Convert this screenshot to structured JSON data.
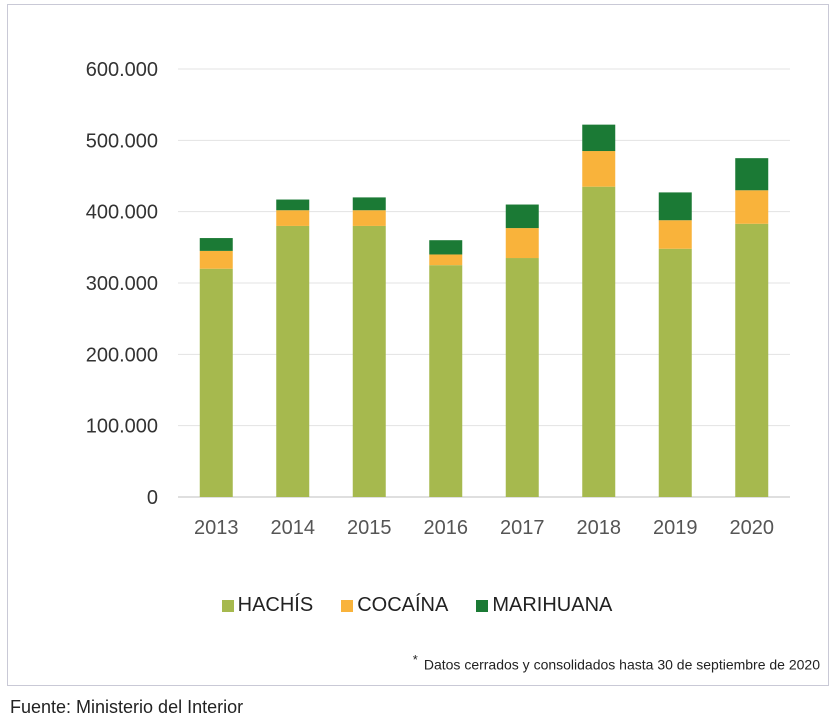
{
  "chart_data": {
    "type": "bar",
    "stacked": true,
    "categories": [
      "2013",
      "2014",
      "2015",
      "2016",
      "2017",
      "2018",
      "2019",
      "2020"
    ],
    "series": [
      {
        "name": "HACHÍS",
        "color": "#a6b94e",
        "values": [
          320000,
          380000,
          380000,
          325000,
          335000,
          435000,
          348000,
          383000
        ]
      },
      {
        "name": "COCAÍNA",
        "color": "#f9b33b",
        "values": [
          25000,
          22000,
          22000,
          15000,
          42000,
          50000,
          40000,
          47000
        ]
      },
      {
        "name": "MARIHUANA",
        "color": "#1b7a35",
        "values": [
          18000,
          15000,
          18000,
          20000,
          33000,
          37000,
          39000,
          45000
        ]
      }
    ],
    "yticks": [
      "0",
      "100.000",
      "200.000",
      "300.000",
      "400.000",
      "500.000",
      "600.000"
    ],
    "ylim": [
      0,
      600000
    ],
    "grid": true,
    "legend_position": "bottom"
  },
  "footnote": {
    "marker": "*",
    "text": "Datos cerrados y consolidados hasta 30 de septiembre de 2020"
  },
  "source": "Fuente: Ministerio del Interior"
}
